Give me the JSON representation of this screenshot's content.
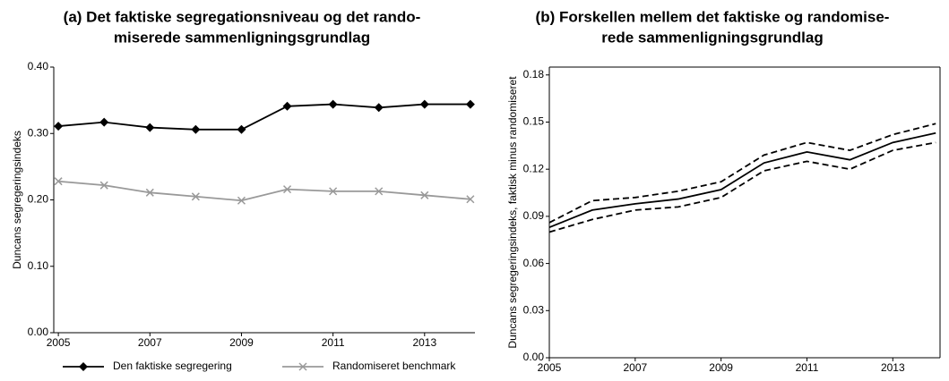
{
  "chart_data": [
    {
      "type": "line",
      "title": [
        "(a) Det faktiske segregationsniveau og det rando-",
        "miserede sammenligningsgrundlag"
      ],
      "y_label": "Duncans segregeringsindeks",
      "x": [
        2005,
        2006,
        2007,
        2008,
        2009,
        2010,
        2011,
        2012,
        2013,
        2014
      ],
      "xlim": [
        2004.9,
        2014.1
      ],
      "xticks": [
        2005,
        2007,
        2009,
        2011,
        2013
      ],
      "ylim": [
        0,
        0.4
      ],
      "yticks": [
        {
          "value": 0,
          "label": "0.00"
        },
        {
          "value": 0.1,
          "label": "0.10"
        },
        {
          "value": 0.2,
          "label": "0.20"
        },
        {
          "value": 0.3,
          "label": "0.30"
        },
        {
          "value": 0.4,
          "label": "0.40"
        }
      ],
      "legend": "bottom",
      "box": false,
      "series": [
        {
          "name": "Den faktiske segregering",
          "color": "#000000",
          "marker": "diamond",
          "values": [
            0.311,
            0.317,
            0.309,
            0.306,
            0.306,
            0.341,
            0.344,
            0.339,
            0.344,
            0.344
          ]
        },
        {
          "name": "Randomiseret benchmark",
          "color": "#999999",
          "marker": "x",
          "values": [
            0.228,
            0.222,
            0.211,
            0.205,
            0.199,
            0.216,
            0.213,
            0.213,
            0.207,
            0.201
          ]
        }
      ]
    },
    {
      "type": "line",
      "title": [
        "(b) Forskellen mellem det faktiske og randomise-",
        "rede sammenligningsgrundlag"
      ],
      "y_label": "Duncans segregeringsindeks, faktisk minus randomiseret",
      "x": [
        2005,
        2006,
        2007,
        2008,
        2009,
        2010,
        2011,
        2012,
        2013,
        2014
      ],
      "xlim": [
        2005,
        2014.1
      ],
      "xticks": [
        2005,
        2007,
        2009,
        2011,
        2013
      ],
      "ylim": [
        0,
        0.185
      ],
      "yticks": [
        {
          "value": 0,
          "label": "0.00"
        },
        {
          "value": 0.03,
          "label": "0.03"
        },
        {
          "value": 0.06,
          "label": "0.06"
        },
        {
          "value": 0.09,
          "label": "0.09"
        },
        {
          "value": 0.12,
          "label": "0.12"
        },
        {
          "value": 0.15,
          "label": "0.15"
        },
        {
          "value": 0.18,
          "label": "0.18"
        }
      ],
      "box": true,
      "series": [
        {
          "color": "#000000",
          "dashed": false,
          "values": [
            0.083,
            0.094,
            0.098,
            0.101,
            0.107,
            0.124,
            0.131,
            0.126,
            0.137,
            0.143
          ]
        },
        {
          "color": "#000000",
          "dashed": true,
          "values": [
            0.086,
            0.1,
            0.102,
            0.106,
            0.112,
            0.129,
            0.137,
            0.132,
            0.142,
            0.149
          ]
        },
        {
          "color": "#000000",
          "dashed": true,
          "values": [
            0.08,
            0.088,
            0.094,
            0.096,
            0.102,
            0.119,
            0.125,
            0.12,
            0.132,
            0.137
          ]
        }
      ]
    }
  ]
}
